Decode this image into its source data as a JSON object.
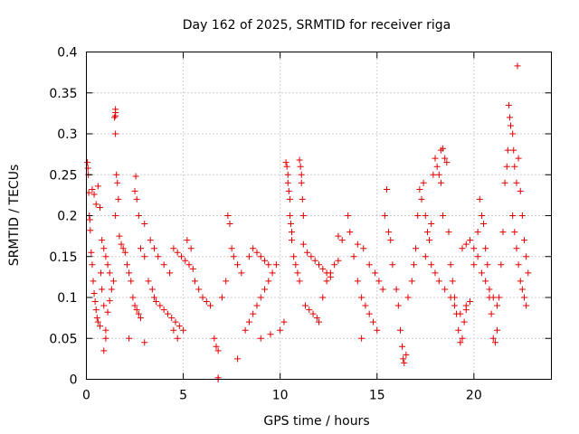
{
  "chart_data": {
    "type": "scatter",
    "title": "Day 162 of 2025, SRMTID for receiver riga",
    "xlabel": "GPS time / hours",
    "ylabel": "SRMTID / TECUs",
    "xlim": [
      0,
      24
    ],
    "ylim": [
      0,
      0.4
    ],
    "xticks": [
      0,
      5,
      10,
      15,
      20
    ],
    "xtick_labels": [
      "0",
      "5",
      "10",
      "15",
      "20"
    ],
    "yticks": [
      0,
      0.05,
      0.1,
      0.15,
      0.2,
      0.25,
      0.3,
      0.35,
      0.4
    ],
    "ytick_labels": [
      "0",
      "0.05",
      "0.1",
      "0.15",
      "0.2",
      "0.25",
      "0.3",
      "0.35",
      "0.4"
    ],
    "grid": true,
    "marker": "+",
    "colors": {
      "series": "#e00000",
      "grid": "#a0a0a0",
      "frame": "#000000"
    },
    "series": [
      {
        "name": "SRMTID",
        "points": [
          [
            0.05,
            0.265
          ],
          [
            0.08,
            0.258
          ],
          [
            0.1,
            0.25
          ],
          [
            0.12,
            0.228
          ],
          [
            0.15,
            0.2
          ],
          [
            0.18,
            0.195
          ],
          [
            0.2,
            0.182
          ],
          [
            0.25,
            0.155
          ],
          [
            0.3,
            0.14
          ],
          [
            0.35,
            0.12
          ],
          [
            0.4,
            0.105
          ],
          [
            0.45,
            0.095
          ],
          [
            0.5,
            0.085
          ],
          [
            0.55,
            0.075
          ],
          [
            0.6,
            0.07
          ],
          [
            0.7,
            0.065
          ],
          [
            0.75,
            0.13
          ],
          [
            0.8,
            0.11
          ],
          [
            0.9,
            0.09
          ],
          [
            1.0,
            0.06
          ],
          [
            0.3,
            0.232
          ],
          [
            0.4,
            0.226
          ],
          [
            0.5,
            0.214
          ],
          [
            0.6,
            0.236
          ],
          [
            0.7,
            0.21
          ],
          [
            0.8,
            0.17
          ],
          [
            0.9,
            0.16
          ],
          [
            1.0,
            0.15
          ],
          [
            1.1,
            0.14
          ],
          [
            1.2,
            0.13
          ],
          [
            0.9,
            0.035
          ],
          [
            1.0,
            0.05
          ],
          [
            1.1,
            0.082
          ],
          [
            1.2,
            0.096
          ],
          [
            1.3,
            0.11
          ],
          [
            1.4,
            0.12
          ],
          [
            1.5,
            0.2
          ],
          [
            1.55,
            0.25
          ],
          [
            1.5,
            0.3
          ],
          [
            1.45,
            0.32
          ],
          [
            1.5,
            0.322
          ],
          [
            1.5,
            0.326
          ],
          [
            1.5,
            0.33
          ],
          [
            1.6,
            0.24
          ],
          [
            1.65,
            0.22
          ],
          [
            1.7,
            0.175
          ],
          [
            1.8,
            0.165
          ],
          [
            1.9,
            0.16
          ],
          [
            2.0,
            0.155
          ],
          [
            2.1,
            0.14
          ],
          [
            2.2,
            0.13
          ],
          [
            2.3,
            0.12
          ],
          [
            2.4,
            0.1
          ],
          [
            2.5,
            0.09
          ],
          [
            2.6,
            0.085
          ],
          [
            2.7,
            0.08
          ],
          [
            2.8,
            0.075
          ],
          [
            2.5,
            0.23
          ],
          [
            2.6,
            0.22
          ],
          [
            2.55,
            0.248
          ],
          [
            2.7,
            0.2
          ],
          [
            2.8,
            0.16
          ],
          [
            3.0,
            0.15
          ],
          [
            3.2,
            0.12
          ],
          [
            3.4,
            0.11
          ],
          [
            3.5,
            0.1
          ],
          [
            3.6,
            0.095
          ],
          [
            3.8,
            0.09
          ],
          [
            4.0,
            0.085
          ],
          [
            4.2,
            0.08
          ],
          [
            4.4,
            0.075
          ],
          [
            4.6,
            0.07
          ],
          [
            4.8,
            0.065
          ],
          [
            5.0,
            0.06
          ],
          [
            3.0,
            0.19
          ],
          [
            3.3,
            0.17
          ],
          [
            3.5,
            0.16
          ],
          [
            3.7,
            0.15
          ],
          [
            4.0,
            0.14
          ],
          [
            4.3,
            0.13
          ],
          [
            4.5,
            0.16
          ],
          [
            4.7,
            0.155
          ],
          [
            4.9,
            0.15
          ],
          [
            5.1,
            0.145
          ],
          [
            5.3,
            0.14
          ],
          [
            5.5,
            0.135
          ],
          [
            4.5,
            0.06
          ],
          [
            4.7,
            0.05
          ],
          [
            3.0,
            0.045
          ],
          [
            2.2,
            0.05
          ],
          [
            5.2,
            0.17
          ],
          [
            5.4,
            0.16
          ],
          [
            5.6,
            0.12
          ],
          [
            5.8,
            0.11
          ],
          [
            6.0,
            0.1
          ],
          [
            6.2,
            0.095
          ],
          [
            6.4,
            0.09
          ],
          [
            6.6,
            0.05
          ],
          [
            6.7,
            0.04
          ],
          [
            6.8,
            0.035
          ],
          [
            6.8,
            0.002
          ],
          [
            6.8,
            0.0
          ],
          [
            7.0,
            0.1
          ],
          [
            7.2,
            0.12
          ],
          [
            7.3,
            0.2
          ],
          [
            7.4,
            0.19
          ],
          [
            7.5,
            0.16
          ],
          [
            7.6,
            0.15
          ],
          [
            7.8,
            0.14
          ],
          [
            8.0,
            0.13
          ],
          [
            7.8,
            0.025
          ],
          [
            8.2,
            0.06
          ],
          [
            8.4,
            0.07
          ],
          [
            8.6,
            0.08
          ],
          [
            8.8,
            0.09
          ],
          [
            9.0,
            0.1
          ],
          [
            9.2,
            0.11
          ],
          [
            9.4,
            0.12
          ],
          [
            9.6,
            0.13
          ],
          [
            9.8,
            0.14
          ],
          [
            8.4,
            0.15
          ],
          [
            8.6,
            0.16
          ],
          [
            8.8,
            0.155
          ],
          [
            9.0,
            0.15
          ],
          [
            9.2,
            0.145
          ],
          [
            9.4,
            0.14
          ],
          [
            9.0,
            0.05
          ],
          [
            9.5,
            0.055
          ],
          [
            10.0,
            0.06
          ],
          [
            10.2,
            0.07
          ],
          [
            10.3,
            0.265
          ],
          [
            10.35,
            0.26
          ],
          [
            10.4,
            0.25
          ],
          [
            10.4,
            0.24
          ],
          [
            10.45,
            0.23
          ],
          [
            10.5,
            0.22
          ],
          [
            10.5,
            0.2
          ],
          [
            10.55,
            0.19
          ],
          [
            10.6,
            0.18
          ],
          [
            10.6,
            0.17
          ],
          [
            10.7,
            0.15
          ],
          [
            10.8,
            0.14
          ],
          [
            10.9,
            0.13
          ],
          [
            11.0,
            0.12
          ],
          [
            11.0,
            0.268
          ],
          [
            11.05,
            0.26
          ],
          [
            11.1,
            0.25
          ],
          [
            11.1,
            0.24
          ],
          [
            11.15,
            0.22
          ],
          [
            11.2,
            0.2
          ],
          [
            11.3,
            0.09
          ],
          [
            11.5,
            0.085
          ],
          [
            11.7,
            0.08
          ],
          [
            11.9,
            0.075
          ],
          [
            12.0,
            0.07
          ],
          [
            12.2,
            0.1
          ],
          [
            12.4,
            0.12
          ],
          [
            12.6,
            0.13
          ],
          [
            12.8,
            0.14
          ],
          [
            13.0,
            0.145
          ],
          [
            11.2,
            0.165
          ],
          [
            11.4,
            0.155
          ],
          [
            11.6,
            0.15
          ],
          [
            11.8,
            0.145
          ],
          [
            12.0,
            0.14
          ],
          [
            12.2,
            0.135
          ],
          [
            12.4,
            0.13
          ],
          [
            12.6,
            0.125
          ],
          [
            13.0,
            0.175
          ],
          [
            13.2,
            0.17
          ],
          [
            13.5,
            0.2
          ],
          [
            13.6,
            0.18
          ],
          [
            13.8,
            0.15
          ],
          [
            14.0,
            0.12
          ],
          [
            14.2,
            0.1
          ],
          [
            14.4,
            0.09
          ],
          [
            14.6,
            0.08
          ],
          [
            14.8,
            0.07
          ],
          [
            15.0,
            0.06
          ],
          [
            14.2,
            0.05
          ],
          [
            14.0,
            0.165
          ],
          [
            14.3,
            0.16
          ],
          [
            14.6,
            0.14
          ],
          [
            14.9,
            0.13
          ],
          [
            15.1,
            0.12
          ],
          [
            15.3,
            0.11
          ],
          [
            15.5,
            0.232
          ],
          [
            15.4,
            0.2
          ],
          [
            15.6,
            0.18
          ],
          [
            15.7,
            0.17
          ],
          [
            15.8,
            0.14
          ],
          [
            16.0,
            0.11
          ],
          [
            16.1,
            0.09
          ],
          [
            16.2,
            0.06
          ],
          [
            16.3,
            0.04
          ],
          [
            16.35,
            0.025
          ],
          [
            16.4,
            0.02
          ],
          [
            16.5,
            0.03
          ],
          [
            16.6,
            0.1
          ],
          [
            16.8,
            0.12
          ],
          [
            16.9,
            0.14
          ],
          [
            17.0,
            0.16
          ],
          [
            17.1,
            0.2
          ],
          [
            17.2,
            0.232
          ],
          [
            17.3,
            0.22
          ],
          [
            17.4,
            0.24
          ],
          [
            17.5,
            0.2
          ],
          [
            17.6,
            0.18
          ],
          [
            17.7,
            0.17
          ],
          [
            17.8,
            0.19
          ],
          [
            17.9,
            0.25
          ],
          [
            18.0,
            0.27
          ],
          [
            18.1,
            0.26
          ],
          [
            18.2,
            0.25
          ],
          [
            18.3,
            0.24
          ],
          [
            18.4,
            0.2
          ],
          [
            18.3,
            0.28
          ],
          [
            18.4,
            0.282
          ],
          [
            18.5,
            0.27
          ],
          [
            18.6,
            0.265
          ],
          [
            18.7,
            0.18
          ],
          [
            18.8,
            0.14
          ],
          [
            18.9,
            0.12
          ],
          [
            19.0,
            0.1
          ],
          [
            19.1,
            0.08
          ],
          [
            19.2,
            0.06
          ],
          [
            19.3,
            0.045
          ],
          [
            19.4,
            0.05
          ],
          [
            19.5,
            0.07
          ],
          [
            19.6,
            0.09
          ],
          [
            17.5,
            0.15
          ],
          [
            17.8,
            0.14
          ],
          [
            18.0,
            0.13
          ],
          [
            18.2,
            0.12
          ],
          [
            18.5,
            0.11
          ],
          [
            18.8,
            0.1
          ],
          [
            19.0,
            0.09
          ],
          [
            19.3,
            0.08
          ],
          [
            19.6,
            0.085
          ],
          [
            19.8,
            0.095
          ],
          [
            20.0,
            0.14
          ],
          [
            20.2,
            0.18
          ],
          [
            20.3,
            0.22
          ],
          [
            20.4,
            0.2
          ],
          [
            20.5,
            0.19
          ],
          [
            20.6,
            0.16
          ],
          [
            20.7,
            0.14
          ],
          [
            20.8,
            0.1
          ],
          [
            20.9,
            0.08
          ],
          [
            21.0,
            0.05
          ],
          [
            21.1,
            0.045
          ],
          [
            21.2,
            0.06
          ],
          [
            21.3,
            0.1
          ],
          [
            21.4,
            0.14
          ],
          [
            21.5,
            0.18
          ],
          [
            21.6,
            0.24
          ],
          [
            21.7,
            0.26
          ],
          [
            21.75,
            0.28
          ],
          [
            21.8,
            0.335
          ],
          [
            21.85,
            0.32
          ],
          [
            21.9,
            0.31
          ],
          [
            22.0,
            0.3
          ],
          [
            22.05,
            0.28
          ],
          [
            22.1,
            0.26
          ],
          [
            22.2,
            0.24
          ],
          [
            22.25,
            0.383
          ],
          [
            22.3,
            0.27
          ],
          [
            22.4,
            0.23
          ],
          [
            22.5,
            0.2
          ],
          [
            22.6,
            0.17
          ],
          [
            22.7,
            0.15
          ],
          [
            22.8,
            0.13
          ],
          [
            22.6,
            0.1
          ],
          [
            22.7,
            0.09
          ],
          [
            22.5,
            0.11
          ],
          [
            22.4,
            0.12
          ],
          [
            22.3,
            0.14
          ],
          [
            22.2,
            0.16
          ],
          [
            22.1,
            0.18
          ],
          [
            22.0,
            0.2
          ],
          [
            21.2,
            0.09
          ],
          [
            21.0,
            0.1
          ],
          [
            20.8,
            0.11
          ],
          [
            20.6,
            0.12
          ],
          [
            20.4,
            0.13
          ],
          [
            20.2,
            0.15
          ],
          [
            20.0,
            0.16
          ],
          [
            19.8,
            0.17
          ],
          [
            19.6,
            0.165
          ],
          [
            19.4,
            0.16
          ]
        ]
      }
    ]
  }
}
